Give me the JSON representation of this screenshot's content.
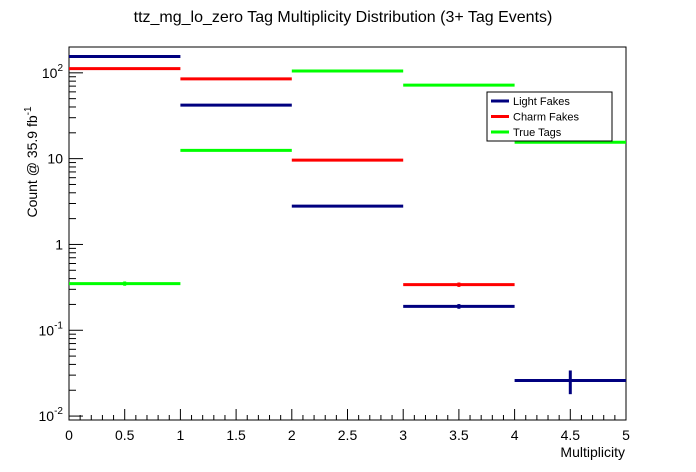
{
  "chart_data": {
    "type": "step",
    "title": "ttz_mg_lo_zero Tag Multiplicity Distribution (3+ Tag Events)",
    "xlabel": "Multiplicity",
    "ylabel": "Count @ 35.9 fb",
    "ylabel_sup": "-1",
    "xlim": [
      0,
      5
    ],
    "ylim": [
      0.009,
      200
    ],
    "yscale": "log",
    "bins": [
      [
        0,
        1
      ],
      [
        1,
        2
      ],
      [
        2,
        3
      ],
      [
        3,
        4
      ],
      [
        4,
        5
      ]
    ],
    "x_ticks": [
      "0",
      "0.5",
      "1",
      "1.5",
      "2",
      "2.5",
      "3",
      "3.5",
      "4",
      "4.5",
      "5"
    ],
    "y_ticks": [
      {
        "base": "10",
        "exp": "-2"
      },
      {
        "base": "10",
        "exp": "-1"
      },
      {
        "base": "1",
        "exp": ""
      },
      {
        "base": "10",
        "exp": ""
      },
      {
        "base": "10",
        "exp": "2"
      }
    ],
    "legend_position": "top-right",
    "series": [
      {
        "name": "Light Fakes",
        "color": "#00007f",
        "values": [
          155,
          42,
          2.8,
          0.19,
          0.026
        ],
        "errors": [
          0,
          0,
          0.05,
          0.012,
          0.008
        ]
      },
      {
        "name": "Charm Fakes",
        "color": "#ff0000",
        "values": [
          112,
          85,
          9.6,
          0.34,
          null
        ],
        "errors": [
          0,
          0,
          0,
          0.02,
          0
        ]
      },
      {
        "name": "True Tags",
        "color": "#00ff00",
        "values": [
          0.35,
          12.5,
          105,
          72,
          15.5
        ],
        "errors": [
          0.02,
          0,
          0,
          0,
          0
        ]
      }
    ]
  }
}
